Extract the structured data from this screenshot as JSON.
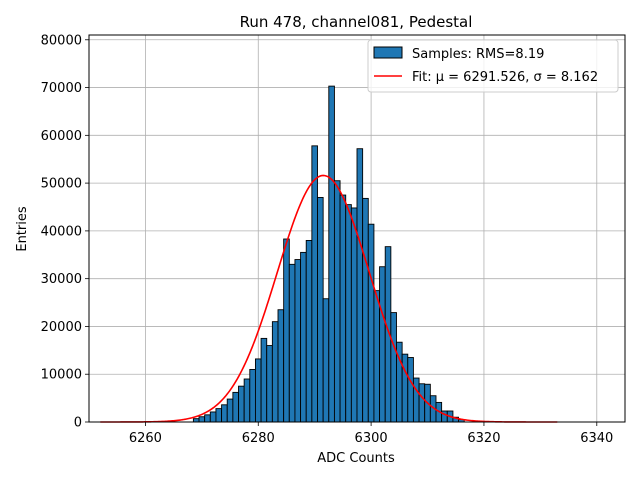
{
  "chart_data": {
    "type": "bar",
    "title": "Run 478, channel081, Pedestal",
    "xlabel": "ADC Counts",
    "ylabel": "Entries",
    "xlim": [
      6250,
      6345
    ],
    "ylim": [
      0,
      81000
    ],
    "xticks": [
      6260,
      6280,
      6300,
      6320,
      6340
    ],
    "yticks": [
      0,
      10000,
      20000,
      30000,
      40000,
      50000,
      60000,
      70000,
      80000
    ],
    "grid": true,
    "legend_position": "top-right",
    "bar_color": "#1f77b4",
    "fit_color": "#ff0000",
    "bin_width": 1,
    "histogram": {
      "name": "Samples: RMS=8.19",
      "bin_centers": [
        6269,
        6270,
        6271,
        6272,
        6273,
        6274,
        6275,
        6276,
        6277,
        6278,
        6279,
        6280,
        6281,
        6282,
        6283,
        6284,
        6285,
        6286,
        6287,
        6288,
        6289,
        6290,
        6291,
        6292,
        6293,
        6294,
        6295,
        6296,
        6297,
        6298,
        6299,
        6300,
        6301,
        6302,
        6303,
        6304,
        6305,
        6306,
        6307,
        6308,
        6309,
        6310,
        6311,
        6312,
        6313,
        6314,
        6315,
        6316
      ],
      "values": [
        700,
        1100,
        1500,
        2100,
        2800,
        3600,
        4800,
        6200,
        7500,
        9000,
        11000,
        13200,
        17500,
        16000,
        21000,
        23500,
        38300,
        33000,
        34000,
        35500,
        38000,
        57800,
        47000,
        25800,
        70300,
        50500,
        47500,
        45500,
        44800,
        57200,
        46800,
        41400,
        27500,
        32500,
        36700,
        22900,
        16700,
        14200,
        13500,
        9200,
        8000,
        7900,
        5500,
        4100,
        2300,
        2300,
        1000,
        500
      ]
    },
    "fit": {
      "name": "Fit",
      "legend_label": "Fit: μ = 6291.526, σ = 8.162",
      "mu": 6291.526,
      "sigma": 8.162,
      "amplitude": 51600,
      "x_range": [
        6252,
        6333
      ]
    }
  }
}
